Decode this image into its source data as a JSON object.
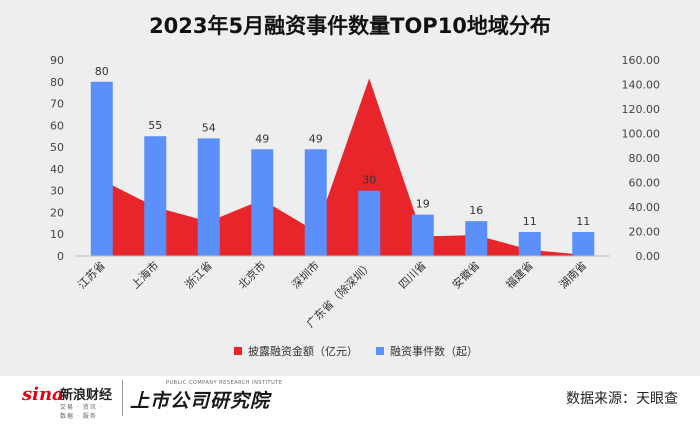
{
  "title": "2023年5月融资事件数量TOP10地域分布",
  "chart_data": {
    "type": "bar+area",
    "categories": [
      "江苏省",
      "上海市",
      "浙江省",
      "北京市",
      "深圳市",
      "广东省（除深圳）",
      "四川省",
      "安徽省",
      "福建省",
      "湖南省"
    ],
    "series": [
      {
        "name": "披露融资金额（亿元）",
        "type": "area",
        "axis": "right",
        "color": "#e8252a",
        "values": [
          62,
          40,
          28,
          46,
          20,
          145,
          16,
          17,
          5,
          1
        ]
      },
      {
        "name": "融资事件数（起）",
        "type": "bar",
        "axis": "left",
        "color": "#5b8ff9",
        "values": [
          80,
          55,
          54,
          49,
          49,
          30,
          19,
          16,
          11,
          11
        ]
      }
    ],
    "left_axis": {
      "min": 0,
      "max": 90,
      "ticks": [
        "0",
        "10",
        "20",
        "30",
        "40",
        "50",
        "60",
        "70",
        "80",
        "90"
      ]
    },
    "right_axis": {
      "min": 0,
      "max": 160,
      "ticks": [
        "0.00",
        "20.00",
        "40.00",
        "60.00",
        "80.00",
        "100.00",
        "120.00",
        "140.00",
        "160.00"
      ]
    },
    "legend": [
      "披露融资金额（亿元）",
      "融资事件数（起）"
    ],
    "legend_position": "bottom"
  },
  "footer": {
    "sina_word": "sina",
    "sina_cn": "新浪财经",
    "sina_sub": "交易 · 资讯 · 数据 · 服务",
    "ssgs_cn": "上市公司研究院",
    "ssgs_en": "PUBLIC COMPANY RESEARCH INSTITUTE",
    "source": "数据来源：天眼查"
  }
}
